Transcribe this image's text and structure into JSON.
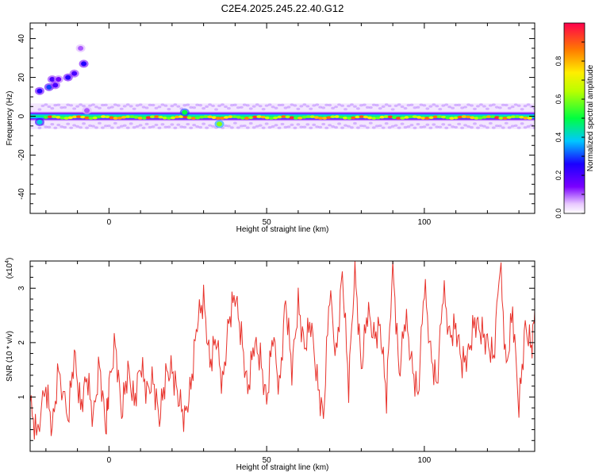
{
  "title": "C2E4.2025.245.22.40.G12",
  "top_panel": {
    "chart_data": {
      "type": "heatmap",
      "xlabel": "Height of straight line (km)",
      "ylabel": "Frequency (Hz)",
      "xlim": [
        -25,
        135
      ],
      "ylim": [
        -50,
        48
      ],
      "x_ticks": [
        0,
        50,
        100
      ],
      "y_ticks": [
        -40,
        -20,
        0,
        20,
        40
      ],
      "grid": false,
      "band": {
        "x_range": [
          -25,
          135
        ],
        "frequency_center": 0,
        "frequency_halfwidth": 3
      },
      "blobs": [
        {
          "x": -22,
          "y": 13,
          "value": 0.25
        },
        {
          "x": -19,
          "y": 15,
          "value": 0.3
        },
        {
          "x": -17,
          "y": 16,
          "value": 0.2
        },
        {
          "x": -22,
          "y": -3,
          "value": 0.4
        },
        {
          "x": -18,
          "y": 19,
          "value": 0.2
        },
        {
          "x": -16,
          "y": 19,
          "value": 0.15
        },
        {
          "x": -13,
          "y": 20,
          "value": 0.25
        },
        {
          "x": -11,
          "y": 22,
          "value": 0.2
        },
        {
          "x": -8,
          "y": 27,
          "value": 0.25
        },
        {
          "x": -9,
          "y": 35,
          "value": 0.1
        },
        {
          "x": -7,
          "y": 3,
          "value": 0.1
        },
        {
          "x": 24,
          "y": 2,
          "value": 0.5
        },
        {
          "x": 35,
          "y": -4,
          "value": 0.6
        }
      ]
    },
    "colorbar": {
      "label": "Normalized spectral amplitude",
      "range": [
        0.0,
        1.0
      ],
      "ticks": [
        0.0,
        0.2,
        0.4,
        0.6,
        0.8
      ],
      "tick_labels": [
        "0.0",
        "0.2",
        "0.4",
        "0.6",
        "0.8"
      ]
    }
  },
  "bottom_panel": {
    "chart_data": {
      "type": "line",
      "xlabel": "Height of straight line (km)",
      "ylabel": "SNR (10 * v/v)",
      "scale_label": "(x10",
      "scale_exp": "4",
      "scale_close": ")",
      "xlim": [
        -25,
        135
      ],
      "ylim": [
        0,
        3.5
      ],
      "x_ticks": [
        0,
        50,
        100
      ],
      "y_ticks": [
        1,
        2,
        3
      ],
      "grid": false,
      "series": [
        {
          "color": "#e8332c",
          "x": [
            -25,
            -23,
            -20,
            -18,
            -16,
            -13,
            -11,
            -9,
            -7,
            -5,
            -3,
            -1,
            0,
            2,
            4,
            6,
            8,
            10,
            12,
            14,
            16,
            18,
            20,
            22,
            24,
            26,
            28,
            30,
            32,
            34,
            36,
            38,
            40,
            42,
            44,
            46,
            48,
            50,
            52,
            54,
            56,
            58,
            60,
            62,
            64,
            66,
            68,
            70,
            72,
            74,
            76,
            78,
            80,
            82,
            84,
            86,
            88,
            90,
            92,
            94,
            96,
            98,
            100,
            102,
            104,
            106,
            108,
            110,
            112,
            114,
            116,
            118,
            120,
            122,
            124,
            126,
            128,
            130,
            132,
            134,
            135
          ],
          "y": [
            0.9,
            0.3,
            1.2,
            0.4,
            1.5,
            0.6,
            1.8,
            0.8,
            1.4,
            0.6,
            1.6,
            0.4,
            1.2,
            2.0,
            0.7,
            1.5,
            0.9,
            1.6,
            1.1,
            1.3,
            0.6,
            1.4,
            1.5,
            1.0,
            0.6,
            1.2,
            2.4,
            2.8,
            1.6,
            2.1,
            1.2,
            2.4,
            2.9,
            2.1,
            1.1,
            2.0,
            1.7,
            0.9,
            2.2,
            1.1,
            2.8,
            1.5,
            2.7,
            1.9,
            2.4,
            1.3,
            0.6,
            3.0,
            1.7,
            3.3,
            1.2,
            3.4,
            1.5,
            2.6,
            2.1,
            2.3,
            1.0,
            3.5,
            1.4,
            2.5,
            1.6,
            1.0,
            3.1,
            1.8,
            1.2,
            3.0,
            2.1,
            2.3,
            1.6,
            1.8,
            2.4,
            2.2,
            2.0,
            1.7,
            3.5,
            1.5,
            2.6,
            0.8,
            2.3,
            1.9,
            2.6
          ]
        }
      ]
    }
  }
}
